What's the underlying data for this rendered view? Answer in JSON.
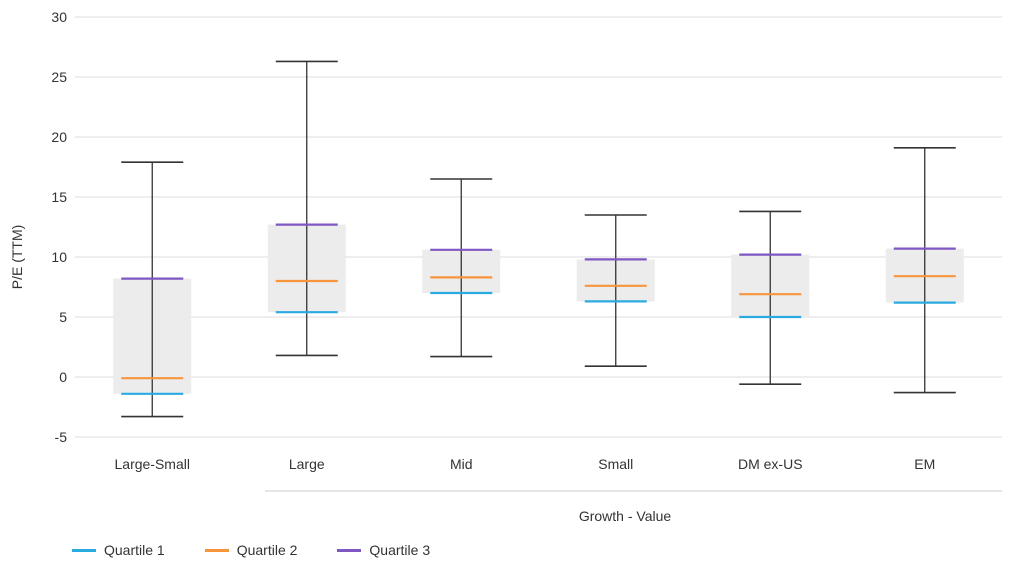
{
  "chart_data": {
    "type": "box",
    "ylabel": "P/E (TTM)",
    "group_label": "Growth - Value",
    "ylim": [
      -5,
      30
    ],
    "yticks": [
      -5,
      0,
      5,
      10,
      15,
      20,
      25,
      30
    ],
    "grid": true,
    "legend_position": "bottom-left",
    "categories": [
      "Large-Small",
      "Large",
      "Mid",
      "Small",
      "DM ex-US",
      "EM"
    ],
    "series": [
      {
        "name": "Quartile 1",
        "color": "#29abe2",
        "values": [
          -1.4,
          5.4,
          7.0,
          6.3,
          5.0,
          6.2
        ]
      },
      {
        "name": "Quartile 2",
        "color": "#f7943c",
        "values": [
          -0.1,
          8.0,
          8.3,
          7.6,
          6.9,
          8.4
        ]
      },
      {
        "name": "Quartile 3",
        "color": "#7e57c2",
        "values": [
          8.2,
          12.7,
          10.6,
          9.8,
          10.2,
          10.7
        ]
      }
    ],
    "min": [
      -3.3,
      1.8,
      1.7,
      0.9,
      -0.6,
      -1.3
    ],
    "max": [
      17.9,
      26.3,
      16.5,
      13.5,
      13.8,
      19.1
    ]
  },
  "colors": {
    "grid": "#dddddd",
    "box_fill": "#ececec",
    "whisker": "#333333",
    "text": "#333333"
  }
}
